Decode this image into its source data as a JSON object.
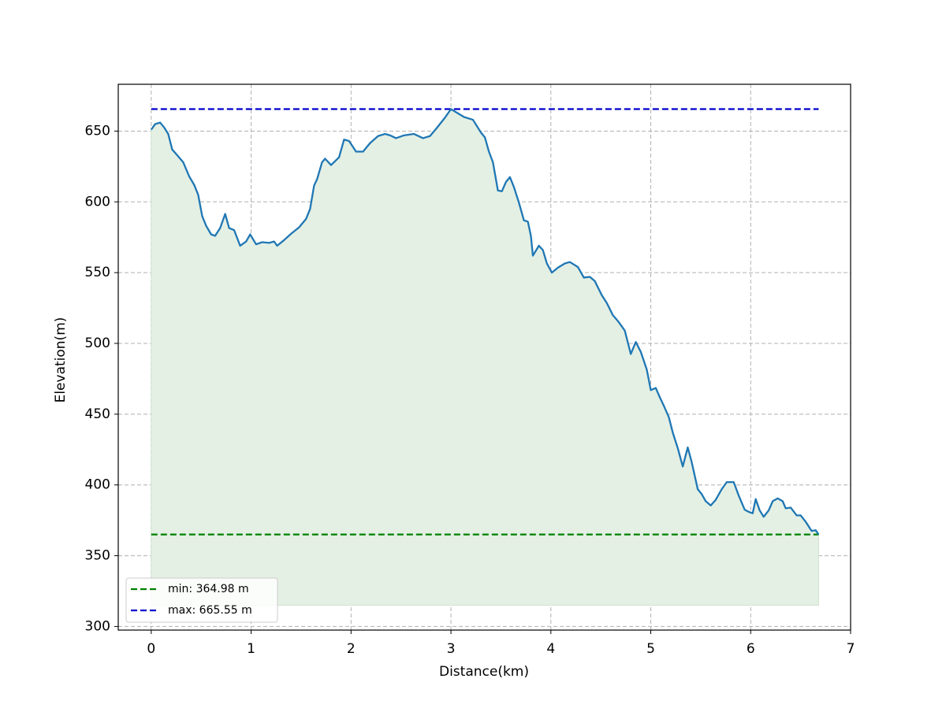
{
  "chart_data": {
    "type": "line",
    "xlabel": "Distance(km)",
    "ylabel": "Elevation(m)",
    "x": [
      0,
      0.04,
      0.09,
      0.13,
      0.17,
      0.21,
      0.26,
      0.32,
      0.38,
      0.43,
      0.47,
      0.51,
      0.55,
      0.6,
      0.64,
      0.69,
      0.74,
      0.78,
      0.83,
      0.89,
      0.95,
      0.99,
      1.05,
      1.11,
      1.18,
      1.23,
      1.26,
      1.33,
      1.4,
      1.48,
      1.55,
      1.59,
      1.63,
      1.66,
      1.71,
      1.74,
      1.8,
      1.88,
      1.93,
      1.98,
      2.05,
      2.12,
      2.19,
      2.27,
      2.34,
      2.39,
      2.45,
      2.53,
      2.63,
      2.72,
      2.79,
      2.85,
      2.94,
      3.0,
      3.06,
      3.13,
      3.22,
      3.3,
      3.34,
      3.38,
      3.42,
      3.47,
      3.51,
      3.55,
      3.59,
      3.63,
      3.68,
      3.73,
      3.77,
      3.8,
      3.82,
      3.88,
      3.92,
      3.96,
      4.01,
      4.07,
      4.14,
      4.19,
      4.27,
      4.33,
      4.39,
      4.44,
      4.51,
      4.56,
      4.62,
      4.68,
      4.74,
      4.8,
      4.85,
      4.9,
      4.96,
      5.0,
      5.05,
      5.09,
      5.13,
      5.18,
      5.22,
      5.27,
      5.32,
      5.37,
      5.41,
      5.47,
      5.51,
      5.55,
      5.6,
      5.65,
      5.71,
      5.76,
      5.83,
      5.88,
      5.94,
      5.98,
      6.02,
      6.05,
      6.09,
      6.13,
      6.18,
      6.22,
      6.27,
      6.32,
      6.35,
      6.4,
      6.46,
      6.5,
      6.55,
      6.61,
      6.65,
      6.68
    ],
    "values": [
      651,
      655,
      656,
      652.5,
      648,
      637,
      633,
      628,
      618,
      612,
      605,
      590,
      583,
      577,
      576,
      581.5,
      591.5,
      581.5,
      580,
      569,
      572,
      577,
      570,
      571.5,
      571,
      572,
      569,
      573,
      577.5,
      582,
      588,
      595,
      611.5,
      616,
      628,
      630.5,
      626,
      631.5,
      644,
      643,
      635.5,
      635.5,
      641.5,
      646.5,
      648,
      647,
      645,
      647,
      648,
      645,
      646.5,
      651.5,
      659.5,
      665.55,
      663,
      660,
      658,
      649,
      645.5,
      635.5,
      628,
      608,
      607.5,
      614,
      617.5,
      610.5,
      599.5,
      587,
      586,
      576,
      562,
      569,
      566,
      556.5,
      550,
      553.5,
      556.5,
      557.5,
      554,
      546.5,
      547,
      544,
      534,
      528.5,
      520,
      515,
      509,
      492.5,
      501,
      494,
      481.5,
      467,
      468.5,
      462,
      456,
      448,
      437,
      426,
      413,
      426.5,
      416,
      397,
      393.5,
      388.5,
      385.5,
      389.5,
      397,
      402,
      402,
      392.5,
      382.5,
      381,
      380,
      390,
      382,
      377.5,
      382,
      388.5,
      390.5,
      388.5,
      383.5,
      384,
      378.5,
      378.5,
      374,
      367.5,
      368,
      364.98
    ],
    "color": "#1f77b4",
    "fill_base": 314.98,
    "fill_color": "#e4f0e4",
    "reference_lines": [
      {
        "label": "min: 364.98 m",
        "value": 364.98,
        "color": "#008000"
      },
      {
        "label": "max: 665.55 m",
        "value": 665.55,
        "color": "#0000cc"
      }
    ],
    "xlim": [
      -0.33,
      7.0
    ],
    "ylim": [
      297.45,
      683.08
    ],
    "xticks": [
      0,
      1,
      2,
      3,
      4,
      5,
      6,
      7
    ],
    "yticks": [
      300,
      350,
      400,
      450,
      500,
      550,
      600,
      650
    ],
    "grid": true,
    "legend": "lower left"
  }
}
